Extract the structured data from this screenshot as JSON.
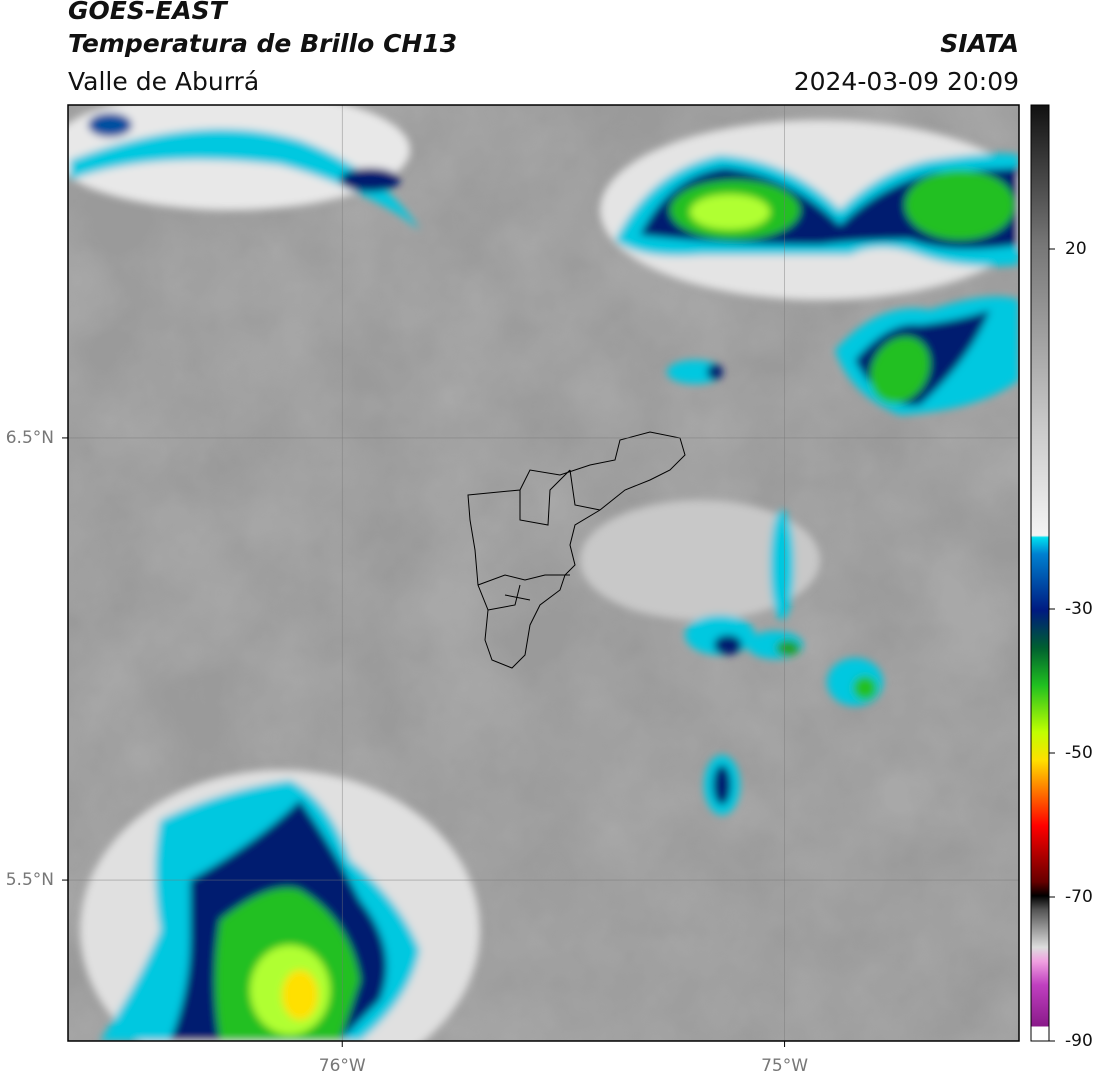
{
  "header": {
    "satellite": "GOES-EAST",
    "product": "Temperatura de Brillo CH13",
    "source": "SIATA",
    "region": "Valle de Aburrá",
    "datetime": "2024-03-09 20:09"
  },
  "map": {
    "xlim": [
      -76.62,
      -74.47
    ],
    "ylim": [
      5.136,
      7.253
    ],
    "xticks": [
      {
        "value": -76,
        "label": "76°W"
      },
      {
        "value": -75,
        "label": "75°W"
      }
    ],
    "yticks": [
      {
        "value": 6.5,
        "label": "6.5°N"
      },
      {
        "value": 5.5,
        "label": "5.5°N"
      }
    ]
  },
  "colorbar": {
    "lim": [
      -90,
      40
    ],
    "ticks": [
      20,
      -30,
      -50,
      -70,
      -90
    ]
  }
}
